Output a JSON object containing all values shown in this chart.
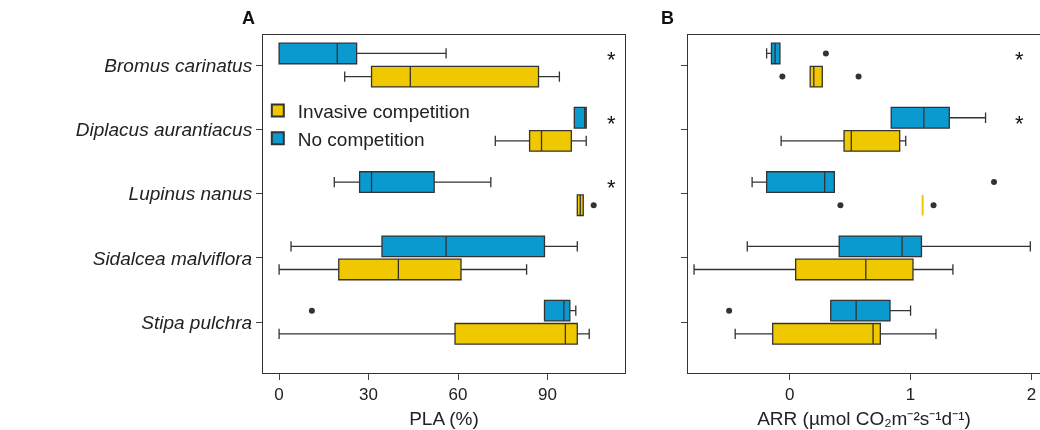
{
  "chart_data": [
    {
      "type": "box",
      "title": "A",
      "xlabel": "PLA (%)",
      "orientation": "horizontal",
      "legend": "left",
      "categories": [
        "Bromus carinatus",
        "Diplacus aurantiacus",
        "Lupinus nanus",
        "Sidalcea malviflora",
        "Stipa pulchra"
      ],
      "xlim": [
        -5.4,
        116
      ],
      "xticks": [
        0,
        30,
        60,
        90
      ],
      "series": [
        {
          "name": "Invasive competition",
          "color": "#f0c800",
          "boxes": [
            {
              "low": 22,
              "q1": 31,
              "median": 44,
              "q3": 87,
              "high": 94
            },
            {
              "low": 72.5,
              "q1": 84,
              "median": 88,
              "q3": 98,
              "high": 103
            },
            {
              "low": 100,
              "q1": 100,
              "median": 101,
              "q3": 102,
              "high": 102,
              "outliers": [
                105.5
              ]
            },
            {
              "low": 0,
              "q1": 20,
              "median": 40,
              "q3": 61,
              "high": 83
            },
            {
              "low": 0,
              "q1": 59,
              "median": 96,
              "q3": 100,
              "high": 104
            }
          ]
        },
        {
          "name": "No competition",
          "color": "#0a9ad0",
          "boxes": [
            {
              "low": 0,
              "q1": 0,
              "median": 19.5,
              "q3": 26,
              "high": 56
            },
            {
              "low": 99,
              "q1": 99,
              "median": 102.5,
              "q3": 103,
              "high": 103
            },
            {
              "low": 18.5,
              "q1": 27,
              "median": 31,
              "q3": 52,
              "high": 71
            },
            {
              "low": 4,
              "q1": 34.5,
              "median": 56,
              "q3": 89,
              "high": 100
            },
            {
              "low": 89,
              "q1": 89,
              "median": 95.5,
              "q3": 97.5,
              "high": 99.5,
              "outliers": [
                11
              ]
            }
          ]
        }
      ],
      "annotations": [
        "*",
        "*",
        "*"
      ]
    },
    {
      "type": "box",
      "title": "B",
      "xlabel": "ARR (µmol CO₂m⁻²s⁻¹d⁻¹)",
      "orientation": "horizontal",
      "tick_labels": "x",
      "categories": [
        null,
        null,
        null,
        null,
        null
      ],
      "xlim": [
        -0.84,
        2.07
      ],
      "xticks": [
        0,
        1,
        2
      ],
      "series": [
        {
          "color": "#f0c800",
          "boxes": [
            {
              "low": 0.17,
              "q1": 0.17,
              "median": 0.2,
              "q3": 0.27,
              "high": 0.27,
              "outliers": [
                -0.06,
                0.57
              ]
            },
            {
              "low": -0.07,
              "q1": 0.45,
              "median": 0.51,
              "q3": 0.91,
              "high": 0.96
            },
            {
              "low": 1.1,
              "q1": 1.1,
              "median": 1.1,
              "q3": 1.1,
              "high": 1.1,
              "outliers": [
                0.42,
                1.19
              ]
            },
            {
              "low": -0.79,
              "q1": 0.05,
              "median": 0.63,
              "q3": 1.02,
              "high": 1.35
            },
            {
              "low": -0.45,
              "q1": -0.14,
              "median": 0.69,
              "q3": 0.75,
              "high": 1.21
            }
          ]
        },
        {
          "color": "#0a9ad0",
          "boxes": [
            {
              "low": -0.19,
              "q1": -0.15,
              "median": -0.12,
              "q3": -0.08,
              "high": -0.08,
              "outliers": [
                0.3
              ]
            },
            {
              "low": 0.84,
              "q1": 0.84,
              "median": 1.11,
              "q3": 1.32,
              "high": 1.62
            },
            {
              "low": -0.31,
              "q1": -0.19,
              "median": 0.29,
              "q3": 0.37,
              "high": 0.37,
              "outliers": [
                1.69
              ]
            },
            {
              "low": -0.35,
              "q1": 0.41,
              "median": 0.93,
              "q3": 1.09,
              "high": 1.99
            },
            {
              "low": 0.34,
              "q1": 0.34,
              "median": 0.55,
              "q3": 0.83,
              "high": 1.0,
              "outliers": [
                -0.5
              ]
            }
          ]
        }
      ],
      "annotations": [
        "*",
        "*"
      ]
    }
  ]
}
